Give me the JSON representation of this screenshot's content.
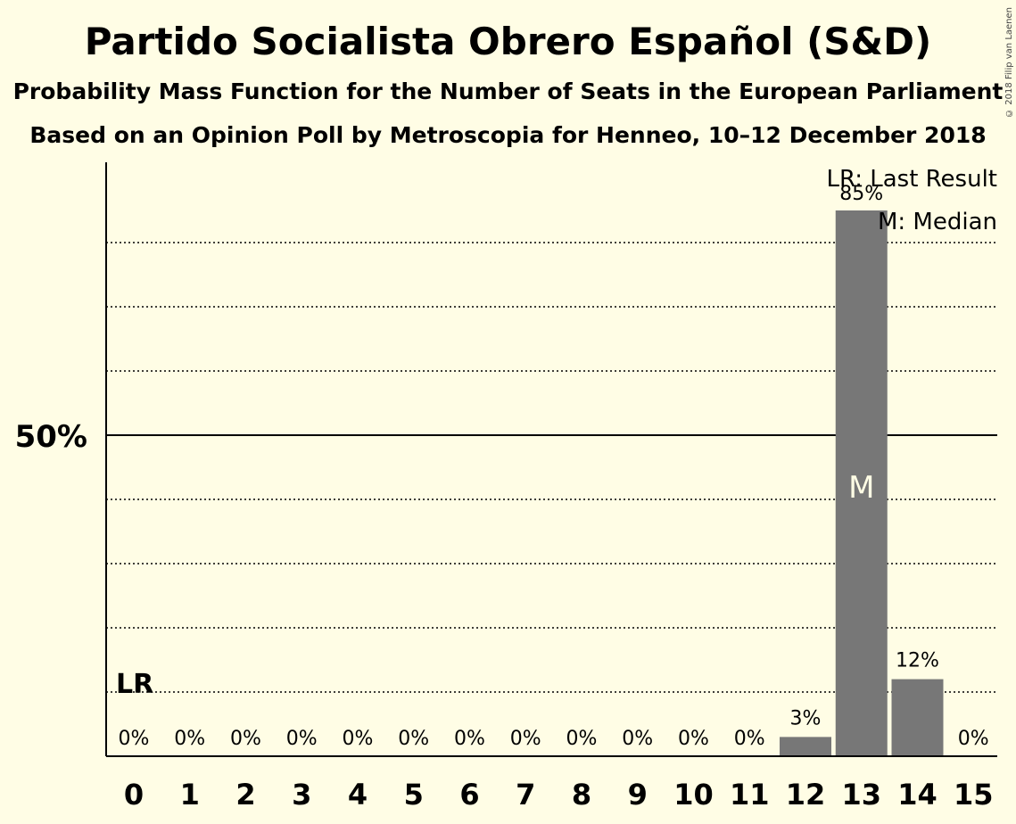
{
  "title": "Partido Socialista Obrero Español (S&D)",
  "subtitle1": "Probability Mass Function for the Number of Seats in the European Parliament",
  "subtitle2": "Based on an Opinion Poll by Metroscopia for Henneo, 10–12 December 2018",
  "copyright": "© 2018 Filip van Laenen",
  "legend": {
    "lr": "LR: Last Result",
    "m": "M: Median"
  },
  "colors": {
    "background": "#fffde5",
    "bar": "#777777"
  },
  "chart_data": {
    "type": "bar",
    "categories": [
      "0",
      "1",
      "2",
      "3",
      "4",
      "5",
      "6",
      "7",
      "8",
      "9",
      "10",
      "11",
      "12",
      "13",
      "14",
      "15"
    ],
    "values": [
      0,
      0,
      0,
      0,
      0,
      0,
      0,
      0,
      0,
      0,
      0,
      0,
      3,
      85,
      12,
      0
    ],
    "value_labels": [
      "0%",
      "0%",
      "0%",
      "0%",
      "0%",
      "0%",
      "0%",
      "0%",
      "0%",
      "0%",
      "0%",
      "0%",
      "3%",
      "85%",
      "12%",
      "0%"
    ],
    "ytick_label": "50%",
    "ylim": [
      0,
      100
    ],
    "gridlines_dotted": [
      10,
      20,
      30,
      40,
      60,
      70,
      80
    ],
    "gridline_solid": 50,
    "last_result_seat": 0,
    "last_result_label": "LR",
    "median_seat": 13,
    "median_label": "M"
  }
}
